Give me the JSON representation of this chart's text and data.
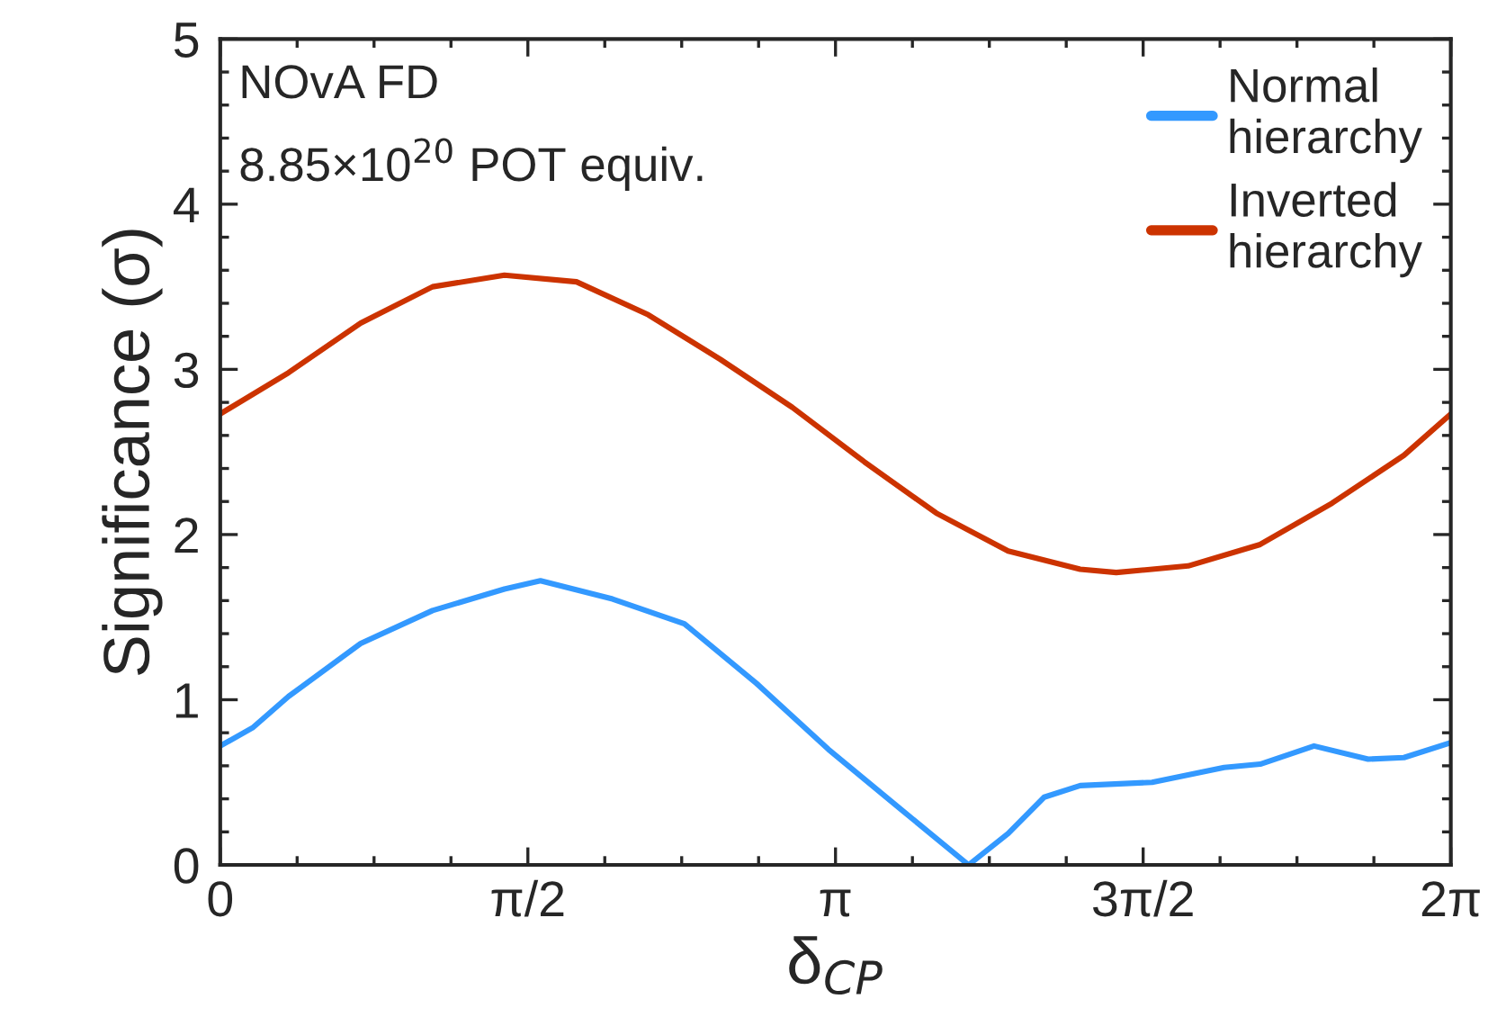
{
  "chart_data": {
    "type": "line",
    "xlabel": "δ$_{CP}$",
    "ylabel": "Significance (σ)",
    "annotations": [
      "NOvA FD",
      "8.85×10$^{20}$ POT equiv."
    ],
    "xlim": [
      0,
      6.2832
    ],
    "xticks": [
      0,
      {
        "value": 1.5708,
        "label": "π/2"
      },
      {
        "value": 3.1416,
        "label": "π"
      },
      {
        "value": 4.7124,
        "label": "3π/2"
      },
      {
        "value": 6.2832,
        "label": "2π"
      }
    ],
    "ylim": [
      0,
      5
    ],
    "yticks": [
      0,
      1,
      2,
      3,
      4,
      5
    ],
    "grid": false,
    "legend": "top right",
    "line_style": "solid",
    "marker": "none",
    "series": [
      {
        "name": "Normal\nhierarchy",
        "color": "#3399ff",
        "x": [
          0,
          0.165,
          0.349,
          0.717,
          1.084,
          1.451,
          1.635,
          2.003,
          2.37,
          2.737,
          3.105,
          3.472,
          3.821,
          4.023,
          4.207,
          4.391,
          4.758,
          5.126,
          5.31,
          5.585,
          5.861,
          6.044,
          6.283
        ],
        "values": [
          0.72,
          0.83,
          1.02,
          1.34,
          1.54,
          1.67,
          1.72,
          1.61,
          1.46,
          1.1,
          0.7,
          0.34,
          0,
          0.19,
          0.41,
          0.48,
          0.5,
          0.59,
          0.61,
          0.72,
          0.64,
          0.65,
          0.74
        ]
      },
      {
        "name": "Inverted\nhierarchy",
        "color": "#cc3300",
        "x": [
          0,
          0.349,
          0.717,
          1.084,
          1.451,
          1.819,
          2.186,
          2.554,
          2.921,
          3.289,
          3.656,
          4.023,
          4.391,
          4.575,
          4.942,
          5.31,
          5.677,
          6.044,
          6.283
        ],
        "values": [
          2.73,
          2.98,
          3.28,
          3.5,
          3.57,
          3.53,
          3.33,
          3.06,
          2.77,
          2.44,
          2.13,
          1.9,
          1.79,
          1.77,
          1.81,
          1.94,
          2.19,
          2.48,
          2.73
        ]
      }
    ]
  }
}
